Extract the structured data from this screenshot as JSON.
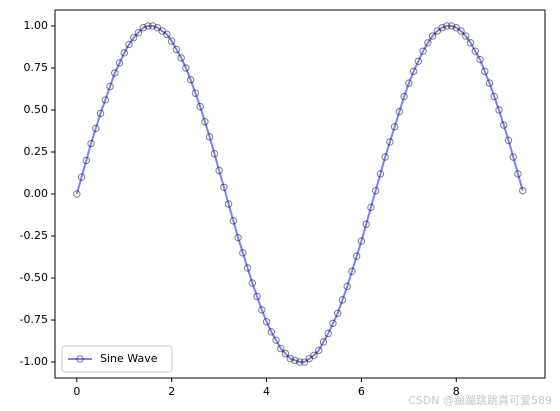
{
  "chart_data": {
    "type": "line",
    "watermark": "CSDN @蹦蹦跳跳真可爱589",
    "x": [
      0,
      0.1,
      0.2,
      0.3,
      0.4,
      0.5,
      0.6,
      0.7,
      0.8,
      0.9,
      1.0,
      1.1,
      1.2,
      1.3,
      1.4,
      1.5,
      1.6,
      1.7,
      1.8,
      1.9,
      2.0,
      2.1,
      2.2,
      2.3,
      2.4,
      2.5,
      2.6,
      2.7,
      2.8,
      2.9,
      3.0,
      3.1,
      3.2,
      3.3,
      3.4,
      3.5,
      3.6,
      3.7,
      3.8,
      3.9,
      4.0,
      4.1,
      4.2,
      4.3,
      4.4,
      4.5,
      4.6,
      4.7,
      4.8,
      4.9,
      5.0,
      5.1,
      5.2,
      5.3,
      5.4,
      5.5,
      5.6,
      5.7,
      5.8,
      5.9,
      6.0,
      6.1,
      6.2,
      6.3,
      6.4,
      6.5,
      6.6,
      6.7,
      6.8,
      6.9,
      7.0,
      7.1,
      7.2,
      7.3,
      7.4,
      7.5,
      7.6,
      7.7,
      7.8,
      7.9,
      8.0,
      8.1,
      8.2,
      8.3,
      8.4,
      8.5,
      8.6,
      8.7,
      8.8,
      8.9,
      9.0,
      9.1,
      9.2,
      9.3,
      9.4
    ],
    "series": [
      {
        "name": "Sine Wave",
        "color": "#0000ff",
        "marker_edgecolor": "#000000",
        "alpha": 0.5,
        "values": [
          0,
          0.1,
          0.2,
          0.3,
          0.39,
          0.48,
          0.56,
          0.64,
          0.72,
          0.78,
          0.84,
          0.89,
          0.93,
          0.96,
          0.99,
          1.0,
          1.0,
          0.99,
          0.97,
          0.95,
          0.91,
          0.86,
          0.81,
          0.75,
          0.68,
          0.6,
          0.52,
          0.43,
          0.34,
          0.24,
          0.14,
          0.04,
          -0.06,
          -0.16,
          -0.26,
          -0.35,
          -0.44,
          -0.53,
          -0.61,
          -0.69,
          -0.76,
          -0.82,
          -0.87,
          -0.92,
          -0.95,
          -0.98,
          -0.99,
          -1.0,
          -1.0,
          -0.98,
          -0.96,
          -0.93,
          -0.88,
          -0.83,
          -0.77,
          -0.71,
          -0.63,
          -0.55,
          -0.46,
          -0.37,
          -0.28,
          -0.18,
          -0.08,
          0.02,
          0.12,
          0.22,
          0.31,
          0.4,
          0.49,
          0.58,
          0.66,
          0.73,
          0.79,
          0.85,
          0.9,
          0.94,
          0.97,
          0.99,
          1.0,
          1.0,
          0.99,
          0.97,
          0.94,
          0.9,
          0.85,
          0.8,
          0.73,
          0.66,
          0.58,
          0.5,
          0.41,
          0.32,
          0.22,
          0.12,
          0.02
        ]
      }
    ],
    "xlim": [
      -0.46,
      9.87
    ],
    "ylim": [
      -1.095,
      1.095
    ],
    "xticks": [
      0,
      2,
      4,
      6,
      8
    ],
    "yticks": [
      {
        "value": -1,
        "label": "-1.00"
      },
      {
        "value": -0.75,
        "label": "-0.75"
      },
      {
        "value": -0.5,
        "label": "-0.50"
      },
      {
        "value": -0.25,
        "label": "-0.25"
      },
      {
        "value": 0,
        "label": "0.00"
      },
      {
        "value": 0.25,
        "label": "0.25"
      },
      {
        "value": 0.5,
        "label": "0.50"
      },
      {
        "value": 0.75,
        "label": "0.75"
      },
      {
        "value": 1,
        "label": "1.00"
      }
    ],
    "legend": "lower left"
  }
}
